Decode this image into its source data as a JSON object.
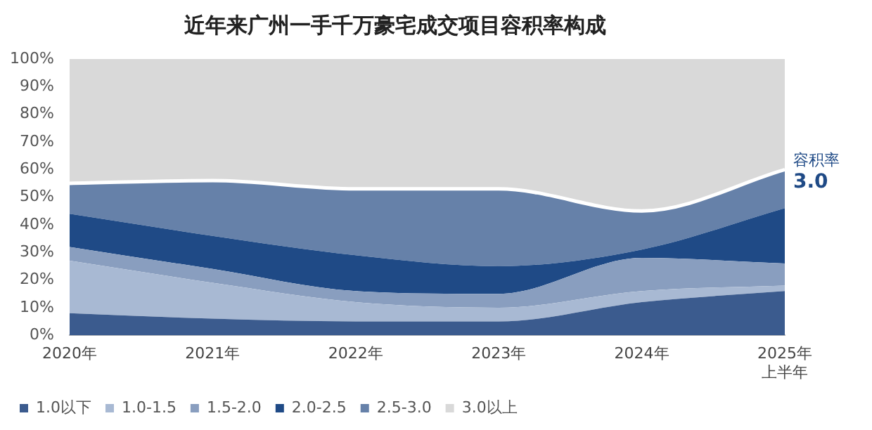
{
  "chart_data": {
    "type": "area",
    "title": "近年来广州一手千万豪宅成交项目容积率构成",
    "stacked": true,
    "categories": [
      "2020年",
      "2021年",
      "2022年",
      "2023年",
      "2024年",
      "2025年上半年"
    ],
    "series": [
      {
        "name": "1.0以下",
        "color": "#3b5b8e",
        "values": [
          8,
          6,
          5,
          5,
          12,
          16
        ]
      },
      {
        "name": "1.0-1.5",
        "color": "#a8b9d3",
        "values": [
          19,
          13,
          7,
          5,
          4,
          2
        ]
      },
      {
        "name": "1.5-2.0",
        "color": "#899ebf",
        "values": [
          5,
          5,
          4,
          5,
          12,
          8
        ]
      },
      {
        "name": "2.0-2.5",
        "color": "#1f4a86",
        "values": [
          12,
          12,
          13,
          10,
          3,
          20
        ]
      },
      {
        "name": "2.5-3.0",
        "color": "#6681a9",
        "values": [
          11,
          20,
          24,
          28,
          14,
          14
        ]
      },
      {
        "name": "3.0以上",
        "color": "#d9d9d9",
        "values": [
          45,
          44,
          47,
          47,
          55,
          40
        ]
      }
    ],
    "ylim": [
      0,
      100
    ],
    "yticks": [
      {
        "value": 0,
        "label": "0%"
      },
      {
        "value": 10,
        "label": "10%"
      },
      {
        "value": 20,
        "label": "20%"
      },
      {
        "value": 30,
        "label": "30%"
      },
      {
        "value": 40,
        "label": "40%"
      },
      {
        "value": 50,
        "label": "50%"
      },
      {
        "value": 60,
        "label": "60%"
      },
      {
        "value": 70,
        "label": "70%"
      },
      {
        "value": 80,
        "label": "80%"
      },
      {
        "value": 90,
        "label": "90%"
      },
      {
        "value": 100,
        "label": "100%"
      }
    ],
    "grid": false,
    "legend": "bottom",
    "marker": "none",
    "annotations": [
      "容积率",
      "3.0"
    ]
  }
}
